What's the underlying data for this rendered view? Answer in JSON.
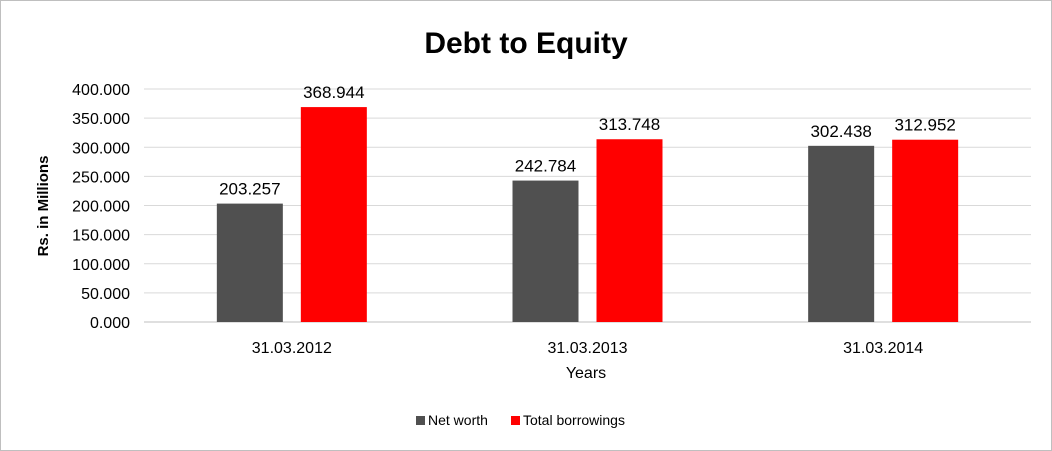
{
  "chart_data": {
    "type": "bar",
    "title": "Debt to Equity",
    "xlabel": "Years",
    "ylabel": "Rs. in Millions",
    "categories": [
      "31.03.2012",
      "31.03.2013",
      "31.03.2014"
    ],
    "series": [
      {
        "name": "Net worth",
        "values": [
          203.257,
          242.784,
          302.438
        ],
        "color": "#505050"
      },
      {
        "name": "Total borrowings",
        "values": [
          368.944,
          313.748,
          312.952
        ],
        "color": "#ff0000"
      }
    ],
    "value_labels": [
      [
        "203.257",
        "242.784",
        "302.438"
      ],
      [
        "368.944",
        "313.748",
        "312.952"
      ]
    ],
    "ylim": [
      0,
      400
    ],
    "yticks": [
      "0.000",
      "50.000",
      "100.000",
      "150.000",
      "200.000",
      "250.000",
      "300.000",
      "350.000",
      "400.000"
    ],
    "grid": true,
    "gridline_color": "#d9d9d9",
    "legend_position": "bottom"
  }
}
